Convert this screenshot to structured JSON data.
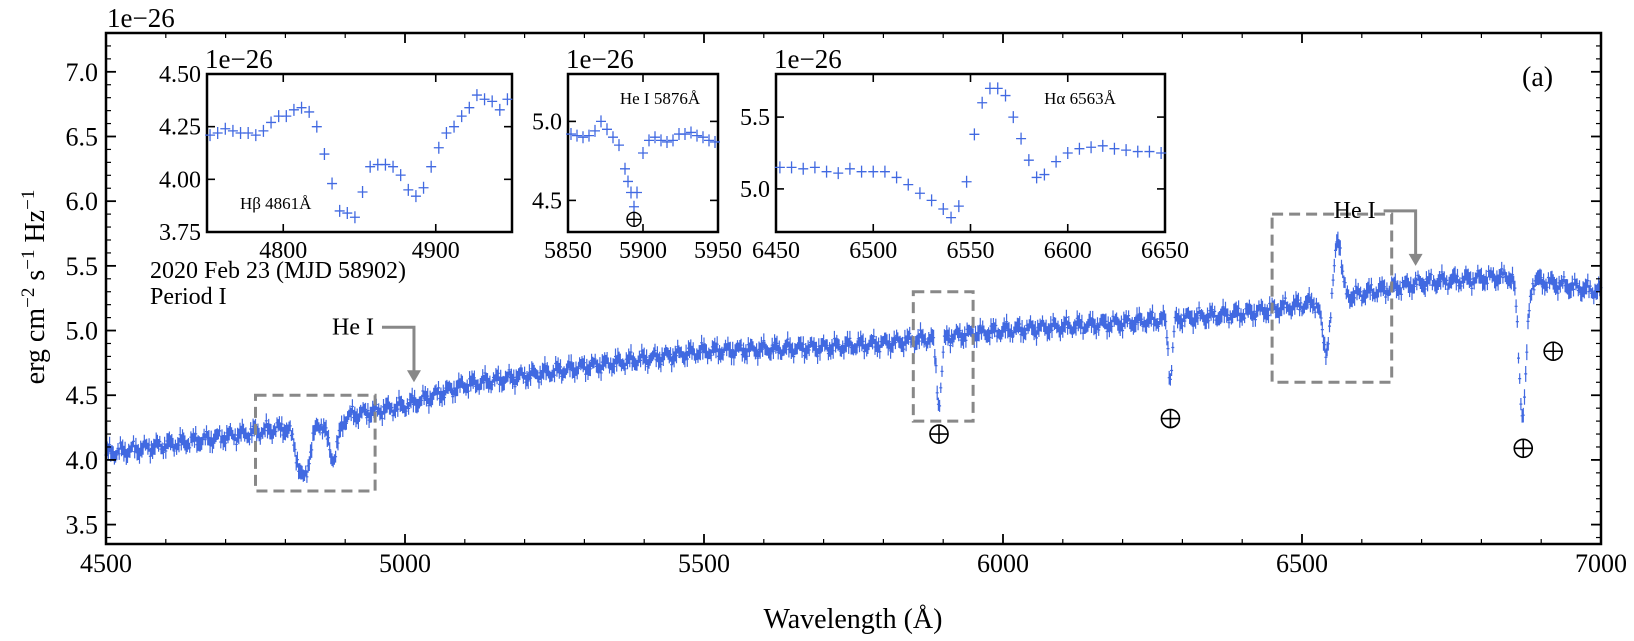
{
  "chart_data": {
    "type": "scatter",
    "panel_label": "(a)",
    "offset_text": "1e−26",
    "xlabel": "Wavelength (Å)",
    "ylabel_parts": {
      "a": "erg cm",
      "e1": "−2",
      "b": " s",
      "e2": "−1",
      "c": " Hz",
      "e3": "−1"
    },
    "xlim": [
      4500,
      7000
    ],
    "ylim": [
      3.35,
      7.3
    ],
    "xticks": [
      4500,
      5000,
      5500,
      6000,
      6500,
      7000
    ],
    "yticks": [
      3.5,
      4.0,
      4.5,
      5.0,
      5.5,
      6.0,
      6.5,
      7.0
    ],
    "marker_color": "#4169e1",
    "frame_color": "#000000",
    "annotation_color": "#888888",
    "info_text": [
      "2020 Feb 23 (MJD 58902)",
      "Period I"
    ],
    "telluric_symbol": "⊕",
    "continuum": [
      [
        4500,
        4.05
      ],
      [
        4700,
        4.18
      ],
      [
        4800,
        4.25
      ],
      [
        5000,
        4.42
      ],
      [
        5100,
        4.58
      ],
      [
        5300,
        4.72
      ],
      [
        5500,
        4.84
      ],
      [
        5700,
        4.87
      ],
      [
        5800,
        4.9
      ],
      [
        6000,
        5.0
      ],
      [
        6200,
        5.06
      ],
      [
        6400,
        5.13
      ],
      [
        6500,
        5.2
      ],
      [
        6700,
        5.37
      ],
      [
        6850,
        5.42
      ],
      [
        7000,
        5.3
      ]
    ],
    "features": [
      {
        "center": 4830,
        "depth": 0.42,
        "width": 15,
        "label": "Hβ 4861Å"
      },
      {
        "center": 4880,
        "depth": 0.3,
        "width": 12,
        "label": ""
      },
      {
        "center": 5893,
        "depth": 0.5,
        "width": 6,
        "label": "He I 5876Å"
      },
      {
        "center": 6280,
        "depth": 0.45,
        "width": 5,
        "label": ""
      },
      {
        "center": 6540,
        "depth": 0.38,
        "width": 9,
        "label": ""
      },
      {
        "center": 6560,
        "depth": -0.48,
        "width": 8,
        "label": "Hα 6563Å"
      },
      {
        "center": 6869,
        "depth": 1.05,
        "width": 9,
        "label": ""
      }
    ],
    "boxes": [
      {
        "x": [
          4750,
          4950
        ],
        "y": [
          3.76,
          4.5
        ]
      },
      {
        "x": [
          5850,
          5950
        ],
        "y": [
          4.3,
          5.3
        ]
      },
      {
        "x": [
          6450,
          6650
        ],
        "y": [
          4.6,
          5.9
        ]
      }
    ],
    "he_lines": [
      {
        "label": "He I",
        "x": 5015,
        "y": 4.6
      },
      {
        "label": "He I",
        "x": 6690,
        "y": 5.5
      }
    ],
    "telluric_marks": [
      {
        "x": 5893,
        "y": 4.2
      },
      {
        "x": 6280,
        "y": 4.32
      },
      {
        "x": 6870,
        "y": 4.09
      },
      {
        "x": 6920,
        "y": 4.84
      }
    ],
    "insets": [
      {
        "name": "hbeta-inset",
        "label": "Hβ 4861Å",
        "offset_text": "1e−26",
        "xlim": [
          4750,
          4950
        ],
        "ylim": [
          3.75,
          4.5
        ],
        "xticks": [
          4800,
          4900
        ],
        "yticks": [
          3.75,
          4.0,
          4.25,
          4.5
        ],
        "ytick_labels": [
          "3.75",
          "4.00",
          "4.25",
          "4.50"
        ],
        "x": [
          4752,
          4757,
          4762,
          4767,
          4772,
          4777,
          4782,
          4787,
          4792,
          4797,
          4802,
          4807,
          4812,
          4817,
          4822,
          4827,
          4832,
          4837,
          4842,
          4847,
          4852,
          4857,
          4862,
          4867,
          4872,
          4877,
          4882,
          4887,
          4892,
          4897,
          4902,
          4907,
          4912,
          4917,
          4922,
          4927,
          4932,
          4937,
          4942,
          4947
        ],
        "y": [
          4.21,
          4.22,
          4.24,
          4.23,
          4.22,
          4.22,
          4.21,
          4.23,
          4.27,
          4.3,
          4.3,
          4.33,
          4.34,
          4.32,
          4.25,
          4.12,
          3.98,
          3.85,
          3.84,
          3.82,
          3.94,
          4.06,
          4.07,
          4.07,
          4.06,
          4.02,
          3.95,
          3.92,
          3.96,
          4.06,
          4.15,
          4.22,
          4.25,
          4.3,
          4.34,
          4.4,
          4.38,
          4.37,
          4.33,
          4.38
        ]
      },
      {
        "name": "hei-inset",
        "label": "He I 5876Å",
        "offset_text": "1e−26",
        "xlim": [
          5850,
          5950
        ],
        "ylim": [
          4.3,
          5.3
        ],
        "xticks": [
          5850,
          5900,
          5950
        ],
        "yticks": [
          4.5,
          5.0
        ],
        "ytick_labels": [
          "4.5",
          "5.0"
        ],
        "telluric_x": 5894,
        "telluric_y": 4.38,
        "x": [
          5852,
          5856,
          5860,
          5864,
          5868,
          5872,
          5876,
          5880,
          5884,
          5888,
          5890,
          5892,
          5894,
          5896,
          5900,
          5904,
          5908,
          5912,
          5916,
          5920,
          5924,
          5928,
          5932,
          5936,
          5940,
          5944,
          5948
        ],
        "y": [
          4.92,
          4.91,
          4.9,
          4.91,
          4.94,
          5.0,
          4.95,
          4.9,
          4.85,
          4.7,
          4.62,
          4.55,
          4.46,
          4.55,
          4.8,
          4.88,
          4.9,
          4.88,
          4.87,
          4.88,
          4.92,
          4.92,
          4.93,
          4.91,
          4.9,
          4.88,
          4.87
        ]
      },
      {
        "name": "halpha-inset",
        "label": "Hα 6563Å",
        "offset_text": "1e−26",
        "xlim": [
          6450,
          6650
        ],
        "ylim": [
          4.7,
          5.8
        ],
        "xticks": [
          6450,
          6500,
          6550,
          6600,
          6650
        ],
        "yticks": [
          5.0,
          5.5
        ],
        "ytick_labels": [
          "5.0",
          "5.5"
        ],
        "x": [
          6452,
          6458,
          6464,
          6470,
          6476,
          6482,
          6488,
          6494,
          6500,
          6506,
          6512,
          6518,
          6524,
          6530,
          6536,
          6540,
          6544,
          6548,
          6552,
          6556,
          6560,
          6564,
          6568,
          6572,
          6576,
          6580,
          6584,
          6588,
          6594,
          6600,
          6606,
          6612,
          6618,
          6624,
          6630,
          6636,
          6642,
          6648
        ],
        "y": [
          5.15,
          5.15,
          5.14,
          5.15,
          5.12,
          5.11,
          5.14,
          5.12,
          5.12,
          5.12,
          5.08,
          5.03,
          4.97,
          4.92,
          4.86,
          4.8,
          4.88,
          5.05,
          5.38,
          5.6,
          5.7,
          5.7,
          5.65,
          5.5,
          5.35,
          5.2,
          5.08,
          5.1,
          5.19,
          5.25,
          5.28,
          5.29,
          5.3,
          5.28,
          5.27,
          5.26,
          5.26,
          5.25
        ]
      }
    ]
  }
}
